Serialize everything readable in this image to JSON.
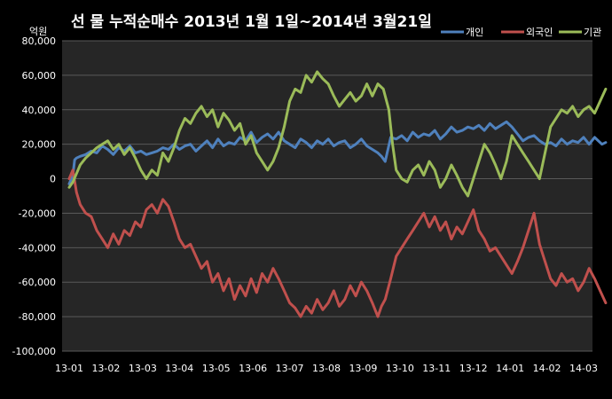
{
  "chart_data": {
    "type": "line",
    "title": "선 물 누적순매수 2013년 1월 1일~2014년 3월21일",
    "unit_label": "억원",
    "xlabel": "",
    "ylabel": "",
    "ylim": [
      -100000,
      80000
    ],
    "yticks": [
      80000,
      60000,
      40000,
      20000,
      0,
      -20000,
      -40000,
      -60000,
      -80000,
      -100000
    ],
    "ytick_labels": [
      "80,000",
      "60,000",
      "40,000",
      "20,000",
      "0",
      "-20,000",
      "-40,000",
      "-60,000",
      "-80,000",
      "-100,000"
    ],
    "x_categories": [
      "13-01",
      "13-02",
      "13-03",
      "13-04",
      "13-05",
      "13-06",
      "13-07",
      "13-08",
      "13-09",
      "13-10",
      "13-11",
      "13-12",
      "14-01",
      "14-02",
      "14-03"
    ],
    "grid": "horizontal",
    "legend_position": "top-right",
    "series": [
      {
        "name": "개인",
        "color": "#4f81bd",
        "x": [
          0.0,
          0.1,
          0.15,
          0.2,
          0.3,
          0.45,
          0.6,
          0.75,
          0.9,
          1.05,
          1.2,
          1.35,
          1.5,
          1.65,
          1.8,
          1.95,
          2.1,
          2.25,
          2.4,
          2.55,
          2.7,
          2.85,
          3.0,
          3.15,
          3.3,
          3.45,
          3.6,
          3.75,
          3.9,
          4.05,
          4.2,
          4.35,
          4.5,
          4.65,
          4.8,
          4.95,
          5.1,
          5.25,
          5.4,
          5.55,
          5.7,
          5.85,
          6.0,
          6.15,
          6.3,
          6.45,
          6.6,
          6.75,
          6.9,
          7.05,
          7.2,
          7.35,
          7.5,
          7.65,
          7.8,
          7.95,
          8.1,
          8.25,
          8.4,
          8.5,
          8.6,
          8.75,
          8.9,
          9.05,
          9.2,
          9.35,
          9.5,
          9.65,
          9.8,
          9.95,
          10.1,
          10.25,
          10.4,
          10.55,
          10.7,
          10.85,
          11.0,
          11.15,
          11.3,
          11.45,
          11.6,
          11.75,
          11.9,
          12.05,
          12.2,
          12.35,
          12.5,
          12.65,
          12.8,
          12.95,
          13.1,
          13.25,
          13.4,
          13.55,
          13.7,
          13.85,
          14.0,
          14.15,
          14.3,
          14.5,
          14.6
        ],
        "values": [
          -3000,
          2000,
          11000,
          12000,
          13000,
          14000,
          16000,
          15000,
          19000,
          17000,
          14000,
          18000,
          16000,
          19000,
          15000,
          16000,
          14000,
          15000,
          16000,
          18000,
          17000,
          20000,
          17000,
          19000,
          20000,
          16000,
          19000,
          22000,
          18000,
          23000,
          19000,
          21000,
          20000,
          24000,
          22000,
          27000,
          21000,
          24000,
          26000,
          23000,
          27000,
          22000,
          20000,
          18000,
          23000,
          21000,
          18000,
          22000,
          20000,
          23000,
          19000,
          21000,
          22000,
          18000,
          20000,
          23000,
          19000,
          17000,
          15000,
          13000,
          10000,
          24000,
          23000,
          25000,
          22000,
          27000,
          24000,
          26000,
          25000,
          28000,
          23000,
          26000,
          30000,
          27000,
          28000,
          30000,
          29000,
          31000,
          28000,
          32000,
          29000,
          31000,
          33000,
          30000,
          26000,
          22000,
          24000,
          25000,
          22000,
          20000,
          21000,
          19000,
          23000,
          20000,
          22000,
          21000,
          24000,
          20000,
          24000,
          20000,
          21000
        ]
      },
      {
        "name": "외국인",
        "color": "#c0504d",
        "x": [
          0.0,
          0.1,
          0.2,
          0.3,
          0.45,
          0.6,
          0.75,
          0.9,
          1.05,
          1.2,
          1.35,
          1.5,
          1.65,
          1.8,
          1.95,
          2.1,
          2.25,
          2.4,
          2.55,
          2.7,
          2.85,
          3.0,
          3.15,
          3.3,
          3.45,
          3.6,
          3.75,
          3.9,
          4.05,
          4.2,
          4.35,
          4.5,
          4.65,
          4.8,
          4.95,
          5.1,
          5.25,
          5.4,
          5.55,
          5.7,
          5.85,
          6.0,
          6.15,
          6.3,
          6.45,
          6.6,
          6.75,
          6.9,
          7.05,
          7.2,
          7.35,
          7.5,
          7.65,
          7.8,
          7.95,
          8.1,
          8.25,
          8.4,
          8.5,
          8.6,
          8.75,
          8.9,
          9.05,
          9.2,
          9.35,
          9.5,
          9.65,
          9.8,
          9.95,
          10.1,
          10.25,
          10.4,
          10.55,
          10.7,
          10.85,
          11.0,
          11.15,
          11.3,
          11.45,
          11.6,
          11.75,
          11.9,
          12.05,
          12.2,
          12.35,
          12.5,
          12.65,
          12.8,
          12.95,
          13.1,
          13.25,
          13.4,
          13.55,
          13.7,
          13.85,
          14.0,
          14.15,
          14.3,
          14.45,
          14.6
        ],
        "values": [
          0,
          5000,
          -8000,
          -15000,
          -20000,
          -22000,
          -30000,
          -35000,
          -40000,
          -32000,
          -38000,
          -30000,
          -33000,
          -25000,
          -28000,
          -18000,
          -15000,
          -20000,
          -12000,
          -16000,
          -25000,
          -35000,
          -40000,
          -38000,
          -45000,
          -52000,
          -48000,
          -60000,
          -55000,
          -65000,
          -58000,
          -70000,
          -62000,
          -68000,
          -58000,
          -66000,
          -55000,
          -60000,
          -52000,
          -58000,
          -65000,
          -72000,
          -75000,
          -80000,
          -74000,
          -78000,
          -70000,
          -76000,
          -72000,
          -65000,
          -74000,
          -70000,
          -62000,
          -68000,
          -60000,
          -65000,
          -72000,
          -80000,
          -74000,
          -70000,
          -58000,
          -45000,
          -40000,
          -35000,
          -30000,
          -25000,
          -20000,
          -28000,
          -22000,
          -30000,
          -25000,
          -35000,
          -28000,
          -32000,
          -25000,
          -18000,
          -30000,
          -35000,
          -42000,
          -40000,
          -45000,
          -50000,
          -55000,
          -48000,
          -40000,
          -30000,
          -20000,
          -38000,
          -48000,
          -58000,
          -62000,
          -55000,
          -60000,
          -58000,
          -65000,
          -60000,
          -52000,
          -58000,
          -65000,
          -72000
        ]
      },
      {
        "name": "기관",
        "color": "#9bbb59",
        "x": [
          0.0,
          0.1,
          0.2,
          0.3,
          0.45,
          0.6,
          0.75,
          0.9,
          1.05,
          1.2,
          1.35,
          1.5,
          1.65,
          1.8,
          1.95,
          2.1,
          2.25,
          2.4,
          2.55,
          2.7,
          2.85,
          3.0,
          3.15,
          3.3,
          3.45,
          3.6,
          3.75,
          3.9,
          4.05,
          4.2,
          4.35,
          4.5,
          4.65,
          4.8,
          4.95,
          5.1,
          5.25,
          5.4,
          5.55,
          5.7,
          5.85,
          6.0,
          6.15,
          6.3,
          6.45,
          6.6,
          6.75,
          6.9,
          7.05,
          7.2,
          7.35,
          7.5,
          7.65,
          7.8,
          7.95,
          8.1,
          8.25,
          8.4,
          8.55,
          8.7,
          8.8,
          8.9,
          9.05,
          9.2,
          9.35,
          9.5,
          9.65,
          9.8,
          9.95,
          10.1,
          10.25,
          10.4,
          10.55,
          10.7,
          10.85,
          11.0,
          11.15,
          11.3,
          11.45,
          11.6,
          11.75,
          11.9,
          12.05,
          12.2,
          12.35,
          12.5,
          12.65,
          12.8,
          12.95,
          13.1,
          13.25,
          13.4,
          13.55,
          13.7,
          13.85,
          14.0,
          14.15,
          14.3,
          14.45,
          14.6
        ],
        "values": [
          -5000,
          -2000,
          3000,
          8000,
          12000,
          15000,
          18000,
          20000,
          22000,
          17000,
          20000,
          14000,
          18000,
          12000,
          5000,
          0,
          5000,
          2000,
          15000,
          10000,
          18000,
          28000,
          35000,
          32000,
          38000,
          42000,
          36000,
          40000,
          30000,
          38000,
          34000,
          28000,
          32000,
          20000,
          25000,
          15000,
          10000,
          5000,
          10000,
          18000,
          30000,
          45000,
          52000,
          50000,
          60000,
          56000,
          62000,
          58000,
          55000,
          48000,
          42000,
          46000,
          50000,
          45000,
          48000,
          55000,
          48000,
          55000,
          52000,
          40000,
          20000,
          5000,
          0,
          -2000,
          5000,
          8000,
          2000,
          10000,
          5000,
          -5000,
          0,
          8000,
          2000,
          -5000,
          -10000,
          0,
          10000,
          20000,
          15000,
          8000,
          0,
          10000,
          25000,
          20000,
          15000,
          10000,
          5000,
          0,
          15000,
          30000,
          35000,
          40000,
          38000,
          42000,
          36000,
          40000,
          42000,
          38000,
          45000,
          52000
        ]
      }
    ]
  }
}
